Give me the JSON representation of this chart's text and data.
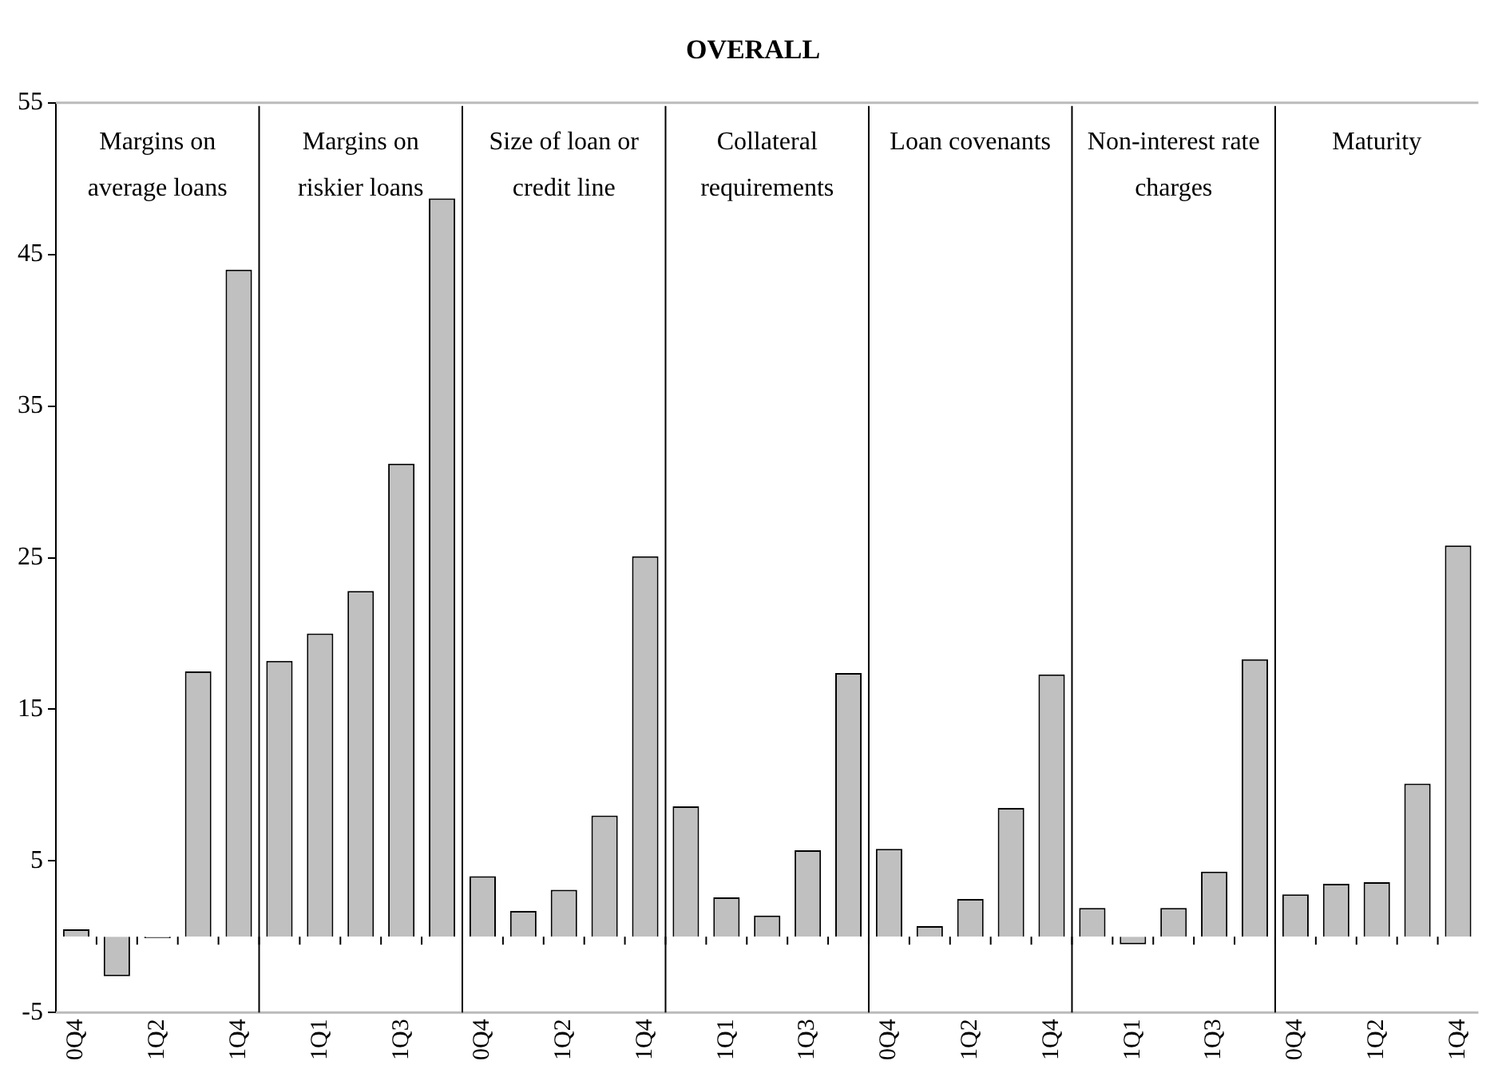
{
  "chart_data": {
    "type": "bar",
    "title": "OVERALL",
    "categories": [
      "0Q4",
      null,
      "1Q2",
      null,
      "1Q4",
      null,
      "1Q1",
      null,
      "1Q3",
      null,
      "0Q4",
      null,
      "1Q2",
      null,
      "1Q4",
      null,
      "1Q1",
      null,
      "1Q3",
      null,
      "0Q4",
      null,
      "1Q2",
      null,
      "1Q4",
      null,
      "1Q1",
      null,
      "1Q3",
      null,
      "0Q4",
      null,
      "1Q2",
      null,
      "1Q4"
    ],
    "values": [
      0.5,
      -2.6,
      -0.1,
      17.5,
      44.0,
      18.2,
      20.0,
      22.8,
      31.2,
      48.7,
      4.0,
      1.7,
      3.1,
      8.0,
      25.1,
      8.6,
      2.6,
      1.4,
      5.7,
      17.4,
      5.8,
      0.7,
      2.5,
      8.5,
      17.3,
      1.9,
      -0.5,
      1.9,
      4.3,
      18.3,
      2.8,
      3.5,
      3.6,
      10.1,
      25.8
    ],
    "color": "#c0c0c0",
    "ylim": [
      -5,
      55
    ],
    "yticks": [
      -5,
      5,
      15,
      25,
      35,
      45,
      55
    ],
    "annotations": [
      "Margins on average loans",
      "Margins on riskier loans",
      "Size of loan or credit line",
      "Collateral requirements",
      "Loan covenants",
      "Non-interest rate charges",
      "Maturity"
    ],
    "grid": false,
    "legend": false
  }
}
